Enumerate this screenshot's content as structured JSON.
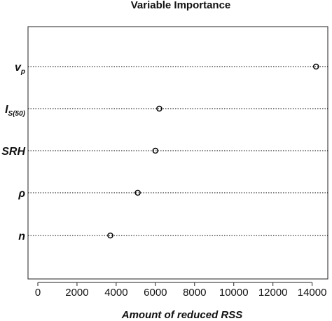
{
  "chart_data": {
    "type": "dotplot",
    "title": "Variable Importance",
    "xlabel": "Amount of reduced RSS",
    "ylabel": "",
    "xlim": [
      -500,
      14800
    ],
    "xticks": [
      "0",
      "2000",
      "4000",
      "6000",
      "8000",
      "10000",
      "12000",
      "14000"
    ],
    "categories": [
      {
        "main": "v",
        "sub": "p"
      },
      {
        "main": "I",
        "sub": "S(50)"
      },
      {
        "main": "SRH",
        "sub": ""
      },
      {
        "main": "ρ",
        "sub": ""
      },
      {
        "main": "n",
        "sub": ""
      }
    ],
    "values": [
      14200,
      6200,
      6000,
      5100,
      3700
    ],
    "grid": "dotted horizontal lines per variable",
    "colors": {
      "marker": "#000000",
      "line": "#000000"
    }
  }
}
